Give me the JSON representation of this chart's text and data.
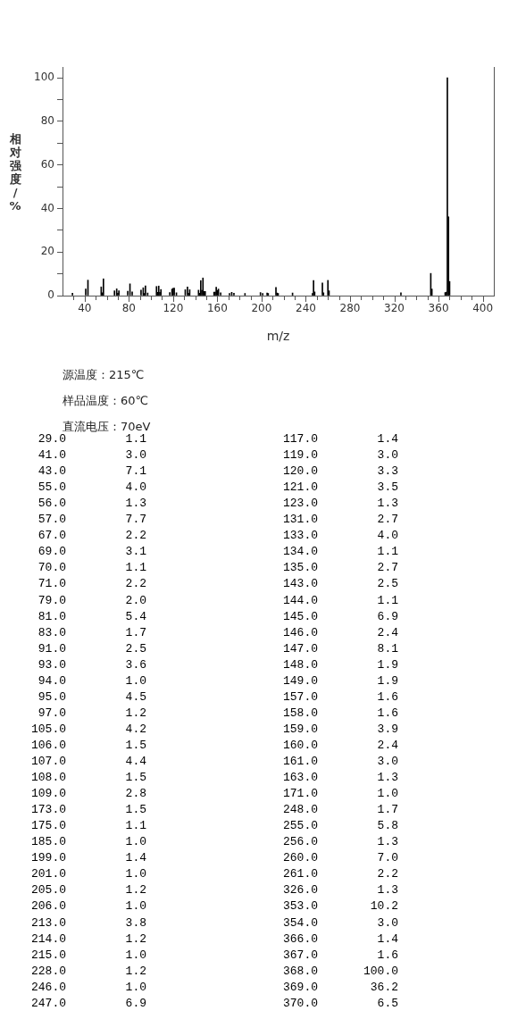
{
  "chart_data": [
    {
      "type": "bar",
      "xlabel": "m/z",
      "ylabel": "相对强度/%",
      "x": [
        29,
        41,
        43,
        55,
        56,
        57,
        67,
        69,
        70,
        71,
        79,
        81,
        83,
        91,
        93,
        94,
        95,
        97,
        105,
        106,
        107,
        108,
        109,
        117,
        119,
        120,
        121,
        123,
        131,
        133,
        134,
        135,
        143,
        144,
        145,
        146,
        147,
        148,
        149,
        157,
        158,
        159,
        160,
        161,
        163,
        171,
        173,
        175,
        185,
        199,
        201,
        205,
        206,
        213,
        214,
        215,
        228,
        246,
        247,
        248,
        255,
        256,
        260,
        261,
        326,
        353,
        354,
        366,
        367,
        368,
        369,
        370
      ],
      "values": [
        1.1,
        3.0,
        7.1,
        4.0,
        1.3,
        7.7,
        2.2,
        3.1,
        1.1,
        2.2,
        2.0,
        5.4,
        1.7,
        2.5,
        3.6,
        1.0,
        4.5,
        1.2,
        4.2,
        1.5,
        4.4,
        1.5,
        2.8,
        1.4,
        3.0,
        3.3,
        3.5,
        1.3,
        2.7,
        4.0,
        1.1,
        2.7,
        2.5,
        1.1,
        6.9,
        2.4,
        8.1,
        1.9,
        1.9,
        1.6,
        1.6,
        3.9,
        2.4,
        3.0,
        1.3,
        1.0,
        1.5,
        1.1,
        1.0,
        1.4,
        1.0,
        1.2,
        1.0,
        3.8,
        1.2,
        1.0,
        1.2,
        1.0,
        6.9,
        1.7,
        5.8,
        1.3,
        7.0,
        2.2,
        1.3,
        10.2,
        3.0,
        1.4,
        1.6,
        100.0,
        36.2,
        6.5
      ],
      "color": "#000000",
      "xlim": [
        20,
        410
      ],
      "xticks": [
        {
          "value": 30,
          "label": null
        },
        40,
        {
          "value": 50,
          "label": null
        },
        {
          "value": 60,
          "label": null
        },
        {
          "value": 70,
          "label": null
        },
        80,
        {
          "value": 90,
          "label": null
        },
        {
          "value": 100,
          "label": null
        },
        {
          "value": 110,
          "label": null
        },
        120,
        {
          "value": 130,
          "label": null
        },
        {
          "value": 140,
          "label": null
        },
        {
          "value": 150,
          "label": null
        },
        160,
        {
          "value": 170,
          "label": null
        },
        {
          "value": 180,
          "label": null
        },
        {
          "value": 190,
          "label": null
        },
        200,
        {
          "value": 210,
          "label": null
        },
        {
          "value": 220,
          "label": null
        },
        {
          "value": 230,
          "label": null
        },
        240,
        {
          "value": 250,
          "label": null
        },
        {
          "value": 260,
          "label": null
        },
        {
          "value": 270,
          "label": null
        },
        280,
        {
          "value": 290,
          "label": null
        },
        {
          "value": 300,
          "label": null
        },
        {
          "value": 310,
          "label": null
        },
        320,
        {
          "value": 330,
          "label": null
        },
        {
          "value": 340,
          "label": null
        },
        {
          "value": 350,
          "label": null
        },
        360,
        {
          "value": 370,
          "label": null
        },
        {
          "value": 380,
          "label": null
        },
        {
          "value": 390,
          "label": null
        },
        400
      ],
      "ylim": [
        0,
        105
      ],
      "yticks": [
        0,
        {
          "value": 10,
          "label": null
        },
        20,
        {
          "value": 30,
          "label": null
        },
        40,
        {
          "value": 50,
          "label": null
        },
        60,
        {
          "value": 70,
          "label": null
        },
        80,
        {
          "value": 90,
          "label": null
        },
        100
      ],
      "annotations": [
        "源温度：215℃",
        "样品温度：60℃",
        "直流电压：70eV"
      ]
    },
    {
      "type": "other",
      "annotations": [
        "29.0",
        "1.1",
        "117.0",
        "1.4",
        "41.0",
        "3.0",
        "119.0",
        "3.0",
        "43.0",
        "7.1",
        "120.0",
        "3.3",
        "55.0",
        "4.0",
        "121.0",
        "3.5",
        "56.0",
        "1.3",
        "123.0",
        "1.3",
        "57.0",
        "7.7",
        "131.0",
        "2.7",
        "67.0",
        "2.2",
        "133.0",
        "4.0",
        "69.0",
        "3.1",
        "134.0",
        "1.1",
        "70.0",
        "1.1",
        "135.0",
        "2.7",
        "71.0",
        "2.2",
        "143.0",
        "2.5",
        "79.0",
        "2.0",
        "144.0",
        "1.1",
        "81.0",
        "5.4",
        "145.0",
        "6.9",
        "83.0",
        "1.7",
        "146.0",
        "2.4",
        "91.0",
        "2.5",
        "147.0",
        "8.1",
        "93.0",
        "3.6",
        "148.0",
        "1.9",
        "94.0",
        "1.0",
        "149.0",
        "1.9",
        "95.0",
        "4.5",
        "157.0",
        "1.6",
        "97.0",
        "1.2",
        "158.0",
        "1.6",
        "105.0",
        "4.2",
        "159.0",
        "3.9",
        "106.0",
        "1.5",
        "160.0",
        "2.4",
        "107.0",
        "4.4",
        "161.0",
        "3.0",
        "108.0",
        "1.5",
        "163.0",
        "1.3",
        "109.0",
        "2.8",
        "171.0",
        "1.0",
        "173.0",
        "1.5",
        "248.0",
        "1.7",
        "175.0",
        "1.1",
        "255.0",
        "5.8",
        "185.0",
        "1.0",
        "256.0",
        "1.3",
        "199.0",
        "1.4",
        "260.0",
        "7.0",
        "201.0",
        "1.0",
        "261.0",
        "2.2",
        "205.0",
        "1.2",
        "326.0",
        "1.3",
        "206.0",
        "1.0",
        "353.0",
        "10.2",
        "213.0",
        "3.8",
        "354.0",
        "3.0",
        "214.0",
        "1.2",
        "366.0",
        "1.4",
        "215.0",
        "1.0",
        "367.0",
        "1.6",
        "228.0",
        "1.2",
        "368.0",
        "100.0",
        "246.0",
        "1.0",
        "369.0",
        "36.2",
        "247.0",
        "6.9",
        "370.0",
        "6.5"
      ]
    }
  ]
}
